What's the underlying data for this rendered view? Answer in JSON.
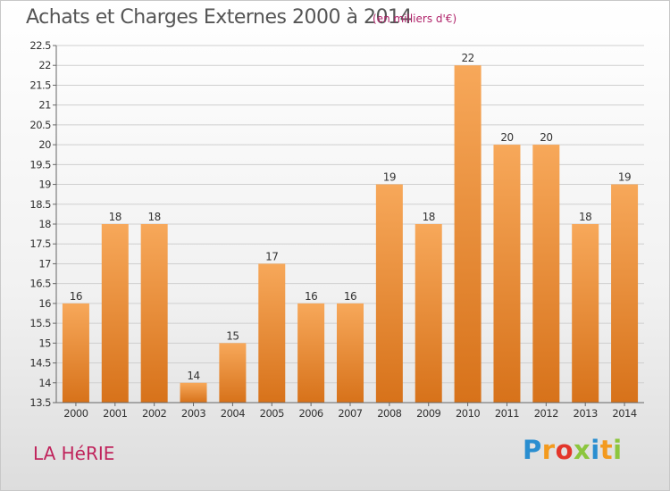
{
  "title": "Achats et Charges Externes 2000 à 2014",
  "subtitle": "(en milliers d'€)",
  "city": "LA HéRIE",
  "logo": [
    "P",
    "r",
    "o",
    "x",
    "i",
    "t",
    "i"
  ],
  "colors": {
    "bar_light": "#f7a85a",
    "bar_dark": "#d7721a",
    "title": "#555555",
    "subtitle": "#b0236a",
    "city": "#c0245c"
  },
  "chart_data": {
    "type": "bar",
    "title": "Achats et Charges Externes 2000 à 2014",
    "subtitle": "(en milliers d'€)",
    "categories": [
      "2000",
      "2001",
      "2002",
      "2003",
      "2004",
      "2005",
      "2006",
      "2007",
      "2008",
      "2009",
      "2010",
      "2011",
      "2012",
      "2013",
      "2014"
    ],
    "values": [
      16,
      18,
      18,
      14,
      15,
      17,
      16,
      16,
      19,
      18,
      22,
      20,
      20,
      18,
      19
    ],
    "data_labels": [
      "16",
      "18",
      "18",
      "14",
      "15",
      "17",
      "16",
      "16",
      "19",
      "18",
      "22",
      "20",
      "20",
      "18",
      "19"
    ],
    "yticks": [
      "13.5",
      "14",
      "14.5",
      "15",
      "15.5",
      "16",
      "16.5",
      "17",
      "17.5",
      "18",
      "18.5",
      "19",
      "19.5",
      "20",
      "20.5",
      "21",
      "21.5",
      "22",
      "22.5"
    ],
    "ylim": [
      13.5,
      22.5
    ],
    "xlabel": "",
    "ylabel": "",
    "grid": true,
    "legend": false
  }
}
